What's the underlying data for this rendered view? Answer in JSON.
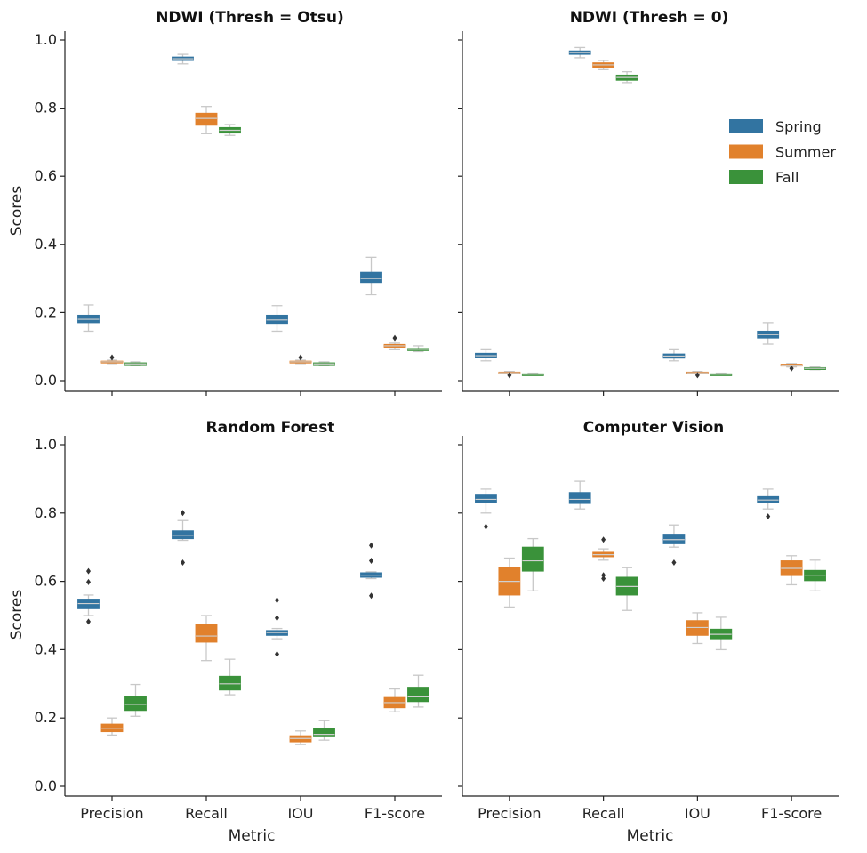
{
  "chart_data": [
    {
      "type": "box",
      "title": "NDWI (Thresh = Otsu)",
      "xlabel": "",
      "ylabel": "Scores",
      "ylim": [
        0,
        1.0
      ],
      "yticks": [
        "0.0",
        "0.2",
        "0.4",
        "0.6",
        "0.8",
        "1.0"
      ],
      "categories": [
        "Precision",
        "Recall",
        "IOU",
        "F1-score"
      ],
      "series": [
        {
          "name": "Spring",
          "boxes": [
            {
              "whislo": 0.145,
              "q1": 0.17,
              "med": 0.18,
              "q3": 0.192,
              "whishi": 0.222,
              "fliers": []
            },
            {
              "whislo": 0.93,
              "q1": 0.94,
              "med": 0.945,
              "q3": 0.95,
              "whishi": 0.958,
              "fliers": []
            },
            {
              "whislo": 0.145,
              "q1": 0.168,
              "med": 0.178,
              "q3": 0.192,
              "whishi": 0.22,
              "fliers": []
            },
            {
              "whislo": 0.252,
              "q1": 0.288,
              "med": 0.3,
              "q3": 0.318,
              "whishi": 0.362,
              "fliers": []
            }
          ]
        },
        {
          "name": "Summer",
          "boxes": [
            {
              "whislo": 0.05,
              "q1": 0.053,
              "med": 0.055,
              "q3": 0.057,
              "whishi": 0.06,
              "fliers": [
                0.068
              ]
            },
            {
              "whislo": 0.725,
              "q1": 0.75,
              "med": 0.77,
              "q3": 0.785,
              "whishi": 0.805,
              "fliers": []
            },
            {
              "whislo": 0.05,
              "q1": 0.053,
              "med": 0.055,
              "q3": 0.057,
              "whishi": 0.06,
              "fliers": [
                0.068
              ]
            },
            {
              "whislo": 0.093,
              "q1": 0.098,
              "med": 0.102,
              "q3": 0.106,
              "whishi": 0.11,
              "fliers": [
                0.125
              ]
            }
          ]
        },
        {
          "name": "Fall",
          "boxes": [
            {
              "whislo": 0.045,
              "q1": 0.047,
              "med": 0.049,
              "q3": 0.052,
              "whishi": 0.055,
              "fliers": []
            },
            {
              "whislo": 0.72,
              "q1": 0.727,
              "med": 0.735,
              "q3": 0.743,
              "whishi": 0.752,
              "fliers": []
            },
            {
              "whislo": 0.045,
              "q1": 0.047,
              "med": 0.049,
              "q3": 0.052,
              "whishi": 0.055,
              "fliers": []
            },
            {
              "whislo": 0.085,
              "q1": 0.088,
              "med": 0.091,
              "q3": 0.094,
              "whishi": 0.102,
              "fliers": []
            }
          ]
        }
      ]
    },
    {
      "type": "box",
      "title": "NDWI (Thresh = 0)",
      "xlabel": "",
      "ylabel": "",
      "ylim": [
        0,
        1.0
      ],
      "categories": [
        "Precision",
        "Recall",
        "IOU",
        "F1-score"
      ],
      "legend": {
        "position": "right",
        "entries": [
          "Spring",
          "Summer",
          "Fall"
        ]
      },
      "series": [
        {
          "name": "Spring",
          "boxes": [
            {
              "whislo": 0.058,
              "q1": 0.067,
              "med": 0.073,
              "q3": 0.08,
              "whishi": 0.093,
              "fliers": []
            },
            {
              "whislo": 0.948,
              "q1": 0.958,
              "med": 0.963,
              "q3": 0.968,
              "whishi": 0.978,
              "fliers": []
            },
            {
              "whislo": 0.058,
              "q1": 0.066,
              "med": 0.072,
              "q3": 0.078,
              "whishi": 0.093,
              "fliers": []
            },
            {
              "whislo": 0.107,
              "q1": 0.125,
              "med": 0.135,
              "q3": 0.145,
              "whishi": 0.17,
              "fliers": []
            }
          ]
        },
        {
          "name": "Summer",
          "boxes": [
            {
              "whislo": 0.02,
              "q1": 0.022,
              "med": 0.023,
              "q3": 0.025,
              "whishi": 0.027,
              "fliers": [
                0.016
              ]
            },
            {
              "whislo": 0.913,
              "q1": 0.92,
              "med": 0.927,
              "q3": 0.933,
              "whishi": 0.94,
              "fliers": []
            },
            {
              "whislo": 0.02,
              "q1": 0.022,
              "med": 0.023,
              "q3": 0.025,
              "whishi": 0.027,
              "fliers": [
                0.016
              ]
            },
            {
              "whislo": 0.04,
              "q1": 0.043,
              "med": 0.045,
              "q3": 0.048,
              "whishi": 0.05,
              "fliers": [
                0.036
              ]
            }
          ]
        },
        {
          "name": "Fall",
          "boxes": [
            {
              "whislo": 0.016,
              "q1": 0.018,
              "med": 0.019,
              "q3": 0.02,
              "whishi": 0.022,
              "fliers": []
            },
            {
              "whislo": 0.875,
              "q1": 0.882,
              "med": 0.89,
              "q3": 0.897,
              "whishi": 0.907,
              "fliers": []
            },
            {
              "whislo": 0.016,
              "q1": 0.018,
              "med": 0.019,
              "q3": 0.02,
              "whishi": 0.022,
              "fliers": []
            },
            {
              "whislo": 0.032,
              "q1": 0.034,
              "med": 0.036,
              "q3": 0.038,
              "whishi": 0.04,
              "fliers": []
            }
          ]
        }
      ]
    },
    {
      "type": "box",
      "title": "Random Forest",
      "xlabel": "Metric",
      "ylabel": "Scores",
      "ylim": [
        0,
        1.0
      ],
      "yticks": [
        "0.0",
        "0.2",
        "0.4",
        "0.6",
        "0.8",
        "1.0"
      ],
      "categories": [
        "Precision",
        "Recall",
        "IOU",
        "F1-score"
      ],
      "series": [
        {
          "name": "Spring",
          "boxes": [
            {
              "whislo": 0.5,
              "q1": 0.52,
              "med": 0.535,
              "q3": 0.548,
              "whishi": 0.56,
              "fliers": [
                0.63,
                0.598,
                0.482
              ]
            },
            {
              "whislo": 0.72,
              "q1": 0.725,
              "med": 0.735,
              "q3": 0.748,
              "whishi": 0.778,
              "fliers": [
                0.8,
                0.655
              ]
            },
            {
              "whislo": 0.432,
              "q1": 0.442,
              "med": 0.45,
              "q3": 0.456,
              "whishi": 0.462,
              "fliers": [
                0.545,
                0.493,
                0.387
              ]
            },
            {
              "whislo": 0.608,
              "q1": 0.612,
              "med": 0.618,
              "q3": 0.625,
              "whishi": 0.628,
              "fliers": [
                0.705,
                0.66,
                0.558
              ]
            }
          ]
        },
        {
          "name": "Summer",
          "boxes": [
            {
              "whislo": 0.15,
              "q1": 0.16,
              "med": 0.17,
              "q3": 0.182,
              "whishi": 0.2,
              "fliers": []
            },
            {
              "whislo": 0.368,
              "q1": 0.422,
              "med": 0.44,
              "q3": 0.475,
              "whishi": 0.5,
              "fliers": []
            },
            {
              "whislo": 0.122,
              "q1": 0.13,
              "med": 0.14,
              "q3": 0.148,
              "whishi": 0.162,
              "fliers": []
            },
            {
              "whislo": 0.218,
              "q1": 0.23,
              "med": 0.245,
              "q3": 0.26,
              "whishi": 0.285,
              "fliers": []
            }
          ]
        },
        {
          "name": "Fall",
          "boxes": [
            {
              "whislo": 0.205,
              "q1": 0.222,
              "med": 0.24,
              "q3": 0.262,
              "whishi": 0.298,
              "fliers": []
            },
            {
              "whislo": 0.268,
              "q1": 0.282,
              "med": 0.3,
              "q3": 0.322,
              "whishi": 0.372,
              "fliers": []
            },
            {
              "whislo": 0.135,
              "q1": 0.145,
              "med": 0.152,
              "q3": 0.17,
              "whishi": 0.192,
              "fliers": []
            },
            {
              "whislo": 0.232,
              "q1": 0.248,
              "med": 0.262,
              "q3": 0.29,
              "whishi": 0.325,
              "fliers": []
            }
          ]
        }
      ]
    },
    {
      "type": "box",
      "title": "Computer Vision",
      "xlabel": "Metric",
      "ylabel": "",
      "ylim": [
        0,
        1.0
      ],
      "categories": [
        "Precision",
        "Recall",
        "IOU",
        "F1-score"
      ],
      "series": [
        {
          "name": "Spring",
          "boxes": [
            {
              "whislo": 0.8,
              "q1": 0.83,
              "med": 0.84,
              "q3": 0.855,
              "whishi": 0.87,
              "fliers": [
                0.76
              ]
            },
            {
              "whislo": 0.812,
              "q1": 0.828,
              "med": 0.84,
              "q3": 0.86,
              "whishi": 0.893,
              "fliers": []
            },
            {
              "whislo": 0.7,
              "q1": 0.71,
              "med": 0.722,
              "q3": 0.738,
              "whishi": 0.765,
              "fliers": [
                0.655
              ]
            },
            {
              "whislo": 0.812,
              "q1": 0.83,
              "med": 0.838,
              "q3": 0.848,
              "whishi": 0.87,
              "fliers": [
                0.79
              ]
            }
          ]
        },
        {
          "name": "Summer",
          "boxes": [
            {
              "whislo": 0.525,
              "q1": 0.56,
              "med": 0.6,
              "q3": 0.64,
              "whishi": 0.668,
              "fliers": []
            },
            {
              "whislo": 0.662,
              "q1": 0.672,
              "med": 0.678,
              "q3": 0.685,
              "whishi": 0.695,
              "fliers": [
                0.722,
                0.618,
                0.608
              ]
            },
            {
              "whislo": 0.418,
              "q1": 0.442,
              "med": 0.465,
              "q3": 0.485,
              "whishi": 0.508,
              "fliers": []
            },
            {
              "whislo": 0.59,
              "q1": 0.617,
              "med": 0.638,
              "q3": 0.66,
              "whishi": 0.675,
              "fliers": []
            }
          ]
        },
        {
          "name": "Fall",
          "boxes": [
            {
              "whislo": 0.572,
              "q1": 0.63,
              "med": 0.66,
              "q3": 0.7,
              "whishi": 0.725,
              "fliers": []
            },
            {
              "whislo": 0.515,
              "q1": 0.56,
              "med": 0.585,
              "q3": 0.612,
              "whishi": 0.64,
              "fliers": []
            },
            {
              "whislo": 0.4,
              "q1": 0.432,
              "med": 0.445,
              "q3": 0.46,
              "whishi": 0.495,
              "fliers": []
            },
            {
              "whislo": 0.572,
              "q1": 0.602,
              "med": 0.618,
              "q3": 0.632,
              "whishi": 0.662,
              "fliers": []
            }
          ]
        }
      ]
    }
  ],
  "colors": {
    "Spring": "#3274a1",
    "Summer": "#e1812c",
    "Fall": "#3a923a",
    "whisker": "#c8c8c8",
    "axis": "#222222",
    "flier": "#333333"
  }
}
